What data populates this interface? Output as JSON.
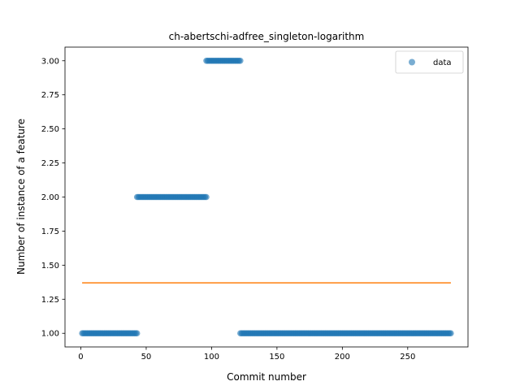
{
  "chart_data": {
    "type": "scatter",
    "title": "ch-abertschi-adfree_singleton-logarithm",
    "xlabel": "Commit number",
    "ylabel": "Number of instance of a feature",
    "xlim": [
      -12.1,
      296.1
    ],
    "ylim": [
      0.9,
      3.1
    ],
    "x_ticks": [
      0,
      50,
      100,
      150,
      200,
      250
    ],
    "y_ticks": [
      1.0,
      1.25,
      1.5,
      1.75,
      2.0,
      2.25,
      2.5,
      2.75,
      3.0
    ],
    "y_tick_labels": [
      "1.00",
      "1.25",
      "1.50",
      "1.75",
      "2.00",
      "2.25",
      "2.50",
      "2.75",
      "3.00"
    ],
    "grid": false,
    "legend_position": "top-right",
    "series": [
      {
        "name": "data",
        "kind": "scatter",
        "color": "#1f77b4",
        "segments": [
          {
            "x_start": 1,
            "x_end": 43,
            "y": 1
          },
          {
            "x_start": 43,
            "x_end": 96,
            "y": 2
          },
          {
            "x_start": 96,
            "x_end": 122,
            "y": 3
          },
          {
            "x_start": 122,
            "x_end": 283,
            "y": 1
          }
        ]
      },
      {
        "kind": "line",
        "color": "#ff7f0e",
        "x": [
          1,
          283
        ],
        "y": [
          1.37,
          1.37
        ]
      }
    ]
  }
}
